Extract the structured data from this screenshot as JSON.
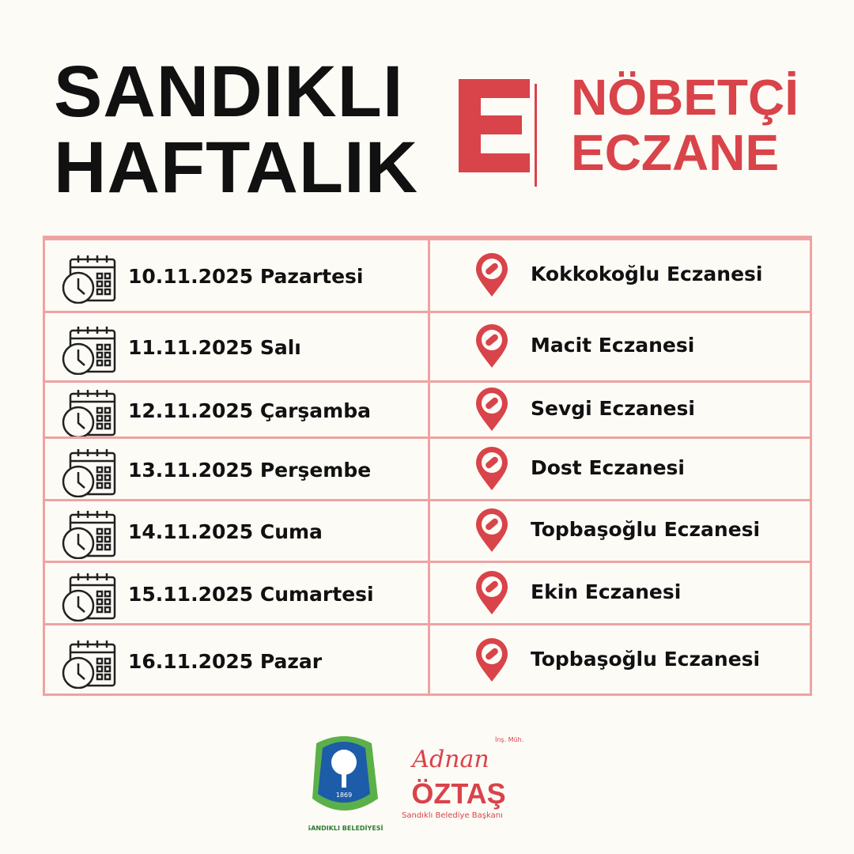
{
  "header": {
    "title_line1": "SANDIKLI",
    "title_line2": "HAFTALIK",
    "logo_letter": "E",
    "subtitle_line1": "NÖBETÇİ",
    "subtitle_line2": "ECZANE"
  },
  "colors": {
    "accent": "#d9434a",
    "border": "#eea3a3",
    "background": "#fdfbf6"
  },
  "rows": [
    {
      "date": "10.11.2025 Pazartesi",
      "pharmacy": "Kokkokoğlu  Eczanesi"
    },
    {
      "date": "11.11.2025 Salı",
      "pharmacy": "Macit Eczanesi"
    },
    {
      "date": "12.11.2025 Çarşamba",
      "pharmacy": "Sevgi Eczanesi"
    },
    {
      "date": "13.11.2025 Perşembe",
      "pharmacy": "Dost Eczanesi"
    },
    {
      "date": "14.11.2025 Cuma",
      "pharmacy": "Topbaşoğlu Eczanesi"
    },
    {
      "date": "15.11.2025 Cumartesi",
      "pharmacy": "Ekin Eczanesi"
    },
    {
      "date": "16.11.2025 Pazar",
      "pharmacy": "Topbaşoğlu Eczanesi"
    }
  ],
  "footer": {
    "municipality_year": "1869",
    "municipality_name": "SANDIKLI BELEDİYESİ",
    "mayor_title": "İnş. Müh.",
    "mayor_first": "Adnan",
    "mayor_last": "ÖZTAŞ",
    "mayor_role": "Sandıklı Belediye Başkanı"
  }
}
